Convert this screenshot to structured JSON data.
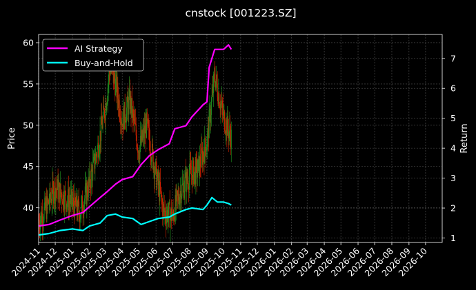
{
  "chart_data": {
    "type": "line",
    "title": "cnstock [001223.SZ]",
    "ylabel": "Price",
    "y2label": "Return",
    "ylim": [
      35.8,
      61.0
    ],
    "y2lim": [
      0.85,
      7.8
    ],
    "yticks": [
      40,
      45,
      50,
      55,
      60
    ],
    "y2ticks": [
      1,
      2,
      3,
      4,
      5,
      6,
      7
    ],
    "xlim": [
      "2024-11-01",
      "2026-10-31"
    ],
    "xticks": [
      "2024-11",
      "2024-12",
      "2025-01",
      "2025-02",
      "2025-03",
      "2025-04",
      "2025-05",
      "2025-06",
      "2025-07",
      "2025-08",
      "2025-09",
      "2025-10",
      "2025-11",
      "2025-12",
      "2026-01",
      "2026-02",
      "2026-03",
      "2026-04",
      "2026-05",
      "2026-06",
      "2026-07",
      "2026-08",
      "2026-09",
      "2026-10"
    ],
    "grid": true,
    "legend_position": "top-left",
    "price_axis": "left",
    "return_axis": "right",
    "candle_colors": {
      "up": "#1f8a1f",
      "down": "#cc2200"
    },
    "price_series": {
      "dates": [
        "2024-11-01",
        "2024-11-15",
        "2024-12-01",
        "2024-12-15",
        "2025-01-01",
        "2025-01-15",
        "2025-02-01",
        "2025-02-15",
        "2025-03-01",
        "2025-03-10",
        "2025-03-20",
        "2025-04-01",
        "2025-04-15",
        "2025-05-01",
        "2025-05-15",
        "2025-06-01",
        "2025-06-15",
        "2025-07-01",
        "2025-07-15",
        "2025-08-01",
        "2025-08-15",
        "2025-09-01",
        "2025-09-15",
        "2025-10-01",
        "2025-10-15"
      ],
      "values": [
        38.5,
        40.0,
        42.5,
        41.5,
        40.5,
        39.5,
        43.0,
        47.0,
        52.0,
        57.0,
        55.0,
        50.5,
        53.0,
        47.0,
        50.0,
        44.0,
        39.5,
        39.0,
        42.0,
        44.0,
        44.5,
        48.0,
        56.0,
        51.0,
        48.5
      ]
    },
    "series": [
      {
        "name": "AI Strategy",
        "color": "#ff00ff",
        "dates": [
          "2024-11-01",
          "2024-11-20",
          "2024-12-10",
          "2025-01-01",
          "2025-01-20",
          "2025-02-01",
          "2025-02-20",
          "2025-03-05",
          "2025-03-20",
          "2025-04-01",
          "2025-04-20",
          "2025-05-05",
          "2025-05-20",
          "2025-06-05",
          "2025-06-25",
          "2025-07-05",
          "2025-07-25",
          "2025-08-05",
          "2025-08-25",
          "2025-09-01",
          "2025-09-05",
          "2025-09-15",
          "2025-10-01",
          "2025-10-10",
          "2025-10-15"
        ],
        "values": [
          1.4,
          1.45,
          1.6,
          1.75,
          1.85,
          2.05,
          2.35,
          2.55,
          2.8,
          2.95,
          3.05,
          3.45,
          3.75,
          3.95,
          4.15,
          4.65,
          4.75,
          5.05,
          5.45,
          5.55,
          6.7,
          7.3,
          7.3,
          7.45,
          7.3
        ]
      },
      {
        "name": "Buy-and-Hold",
        "color": "#00ffff",
        "dates": [
          "2024-11-01",
          "2024-11-20",
          "2024-12-10",
          "2025-01-01",
          "2025-01-20",
          "2025-02-01",
          "2025-02-20",
          "2025-03-05",
          "2025-03-20",
          "2025-04-01",
          "2025-04-20",
          "2025-05-05",
          "2025-05-20",
          "2025-06-05",
          "2025-06-25",
          "2025-07-05",
          "2025-07-25",
          "2025-08-05",
          "2025-08-25",
          "2025-09-01",
          "2025-09-10",
          "2025-09-20",
          "2025-10-01",
          "2025-10-10",
          "2025-10-15"
        ],
        "values": [
          1.1,
          1.15,
          1.25,
          1.3,
          1.25,
          1.4,
          1.5,
          1.75,
          1.8,
          1.7,
          1.65,
          1.45,
          1.55,
          1.65,
          1.7,
          1.8,
          1.95,
          2.0,
          1.95,
          2.1,
          2.35,
          2.2,
          2.2,
          2.15,
          2.1
        ]
      }
    ]
  }
}
